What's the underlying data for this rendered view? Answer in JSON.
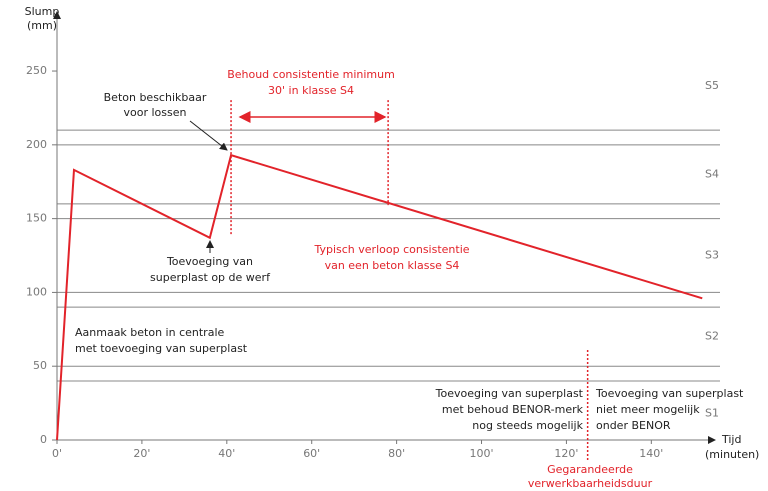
{
  "chart_data": {
    "type": "line",
    "y_label": [
      "Slump",
      "(mm)"
    ],
    "x_label": [
      "Tijd",
      "(minuten)"
    ],
    "xlim": [
      0,
      155
    ],
    "ylim": [
      0,
      290
    ],
    "xticks": [
      {
        "value": 0,
        "label": "0'"
      },
      {
        "value": 20,
        "label": "20'"
      },
      {
        "value": 40,
        "label": "40'"
      },
      {
        "value": 60,
        "label": "60'"
      },
      {
        "value": 80,
        "label": "80'"
      },
      {
        "value": 100,
        "label": "100'"
      },
      {
        "value": 120,
        "label": "120'"
      },
      {
        "value": 140,
        "label": "140'"
      }
    ],
    "yticks": [
      0,
      50,
      100,
      150,
      200,
      250
    ],
    "class_boundaries": [
      40,
      50,
      90,
      100,
      150,
      160,
      200,
      210
    ],
    "classes": [
      {
        "label": "S1",
        "y": 18
      },
      {
        "label": "S2",
        "y": 70
      },
      {
        "label": "S3",
        "y": 125
      },
      {
        "label": "S4",
        "y": 180
      },
      {
        "label": "S5",
        "y": 240
      }
    ],
    "series": [
      {
        "name": "Typisch verloop",
        "color": "#e2232a",
        "x": [
          0,
          4,
          36,
          41,
          152
        ],
        "values": [
          0,
          183,
          137,
          193,
          96
        ]
      }
    ],
    "markers": [
      41,
      78,
      125
    ],
    "annotations": {
      "behoud": [
        "Behoud consistentie minimum",
        "30' in klasse S4"
      ],
      "beschikbaar": [
        "Beton beschikbaar",
        "voor lossen"
      ],
      "werf": [
        "Toevoeging van",
        "superplast op de werf"
      ],
      "verloop": [
        "Typisch verloop consistentie",
        "van een beton klasse S4"
      ],
      "aanmaak": [
        "Aanmaak beton in centrale",
        "met toevoeging van superplast"
      ],
      "mogelijk": [
        "Toevoeging van superplast",
        "met behoud BENOR-merk",
        "nog steeds mogelijk"
      ],
      "niet": [
        "Toevoeging van superplast",
        "niet meer mogelijk",
        "onder BENOR"
      ],
      "duur": [
        "Gegarandeerde",
        "verwerkbaarheidsduur"
      ]
    }
  }
}
